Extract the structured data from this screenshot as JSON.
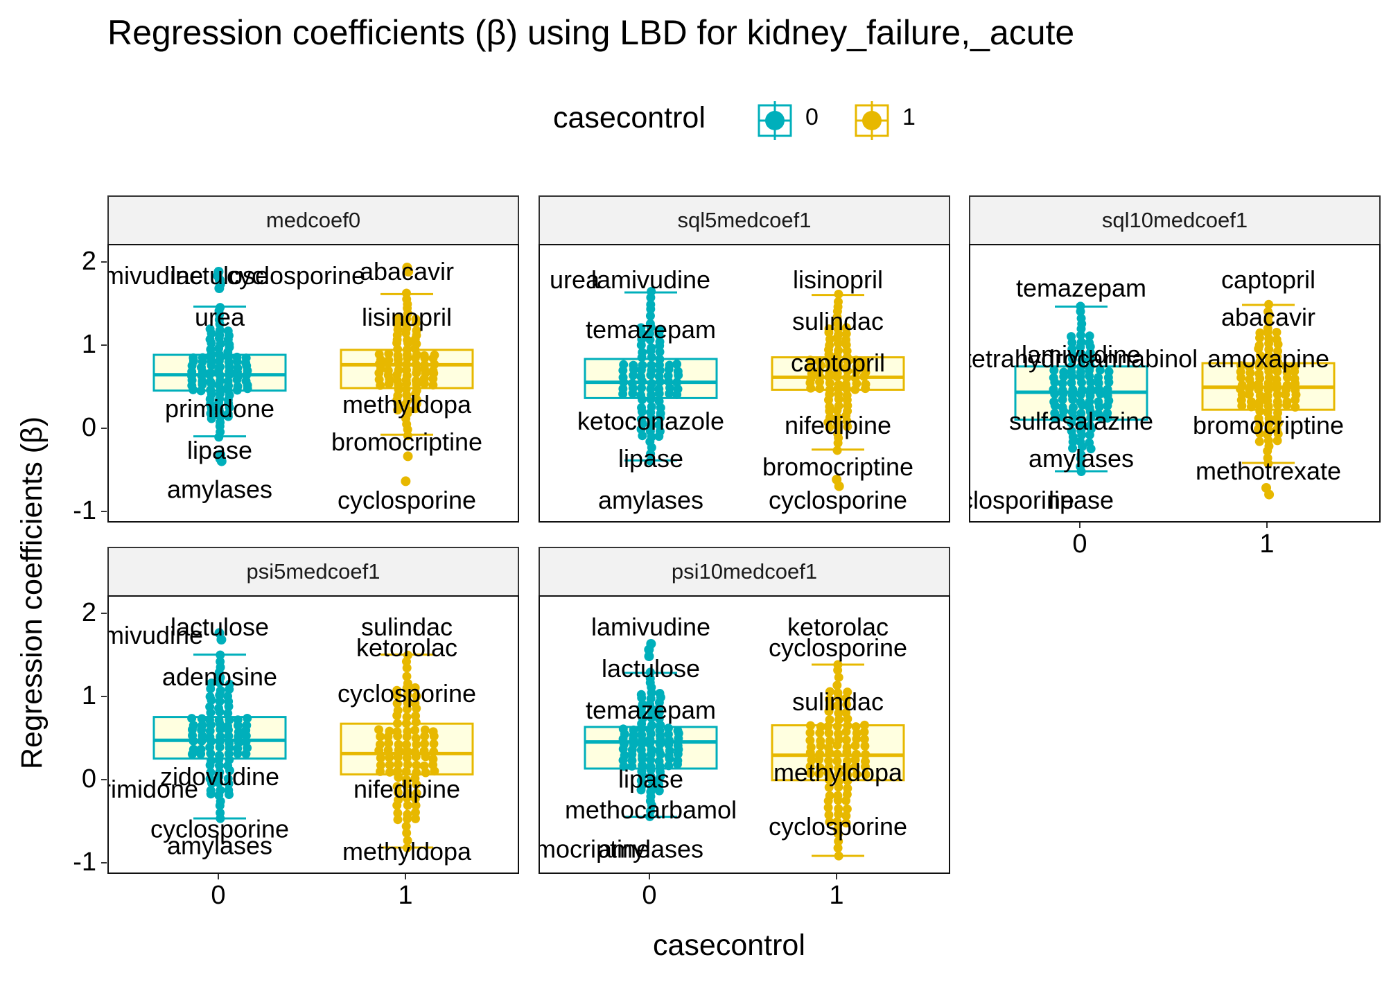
{
  "title": "Regression coefficients (β) using LBD for kidney_failure,_acute",
  "legend": {
    "title": "casecontrol",
    "items": [
      {
        "label": "0",
        "color": "#00AFBB"
      },
      {
        "label": "1",
        "color": "#E7B800"
      }
    ]
  },
  "colors": {
    "group0": "#00AFBB",
    "group1": "#E7B800",
    "box_fill": "#FFFFE0"
  },
  "axes": {
    "ylabel": "Regression coefficients (β)",
    "xlabel": "casecontrol"
  },
  "chart_data": [
    {
      "type": "box",
      "panel": "medcoef0",
      "categories": [
        "0",
        "1"
      ],
      "ylim": [
        -1,
        2
      ],
      "yticks": [
        "-1",
        "0",
        "1",
        "2"
      ],
      "boxes": [
        {
          "group": "0",
          "whisker_low": -0.08,
          "q1": 0.47,
          "median": 0.66,
          "q3": 0.9,
          "whisker_high": 1.48,
          "outliers": [
            1.7,
            1.75,
            1.8,
            1.85,
            1.9,
            -0.3,
            -0.35,
            -0.38
          ]
        },
        {
          "group": "1",
          "whisker_low": -0.06,
          "q1": 0.5,
          "median": 0.78,
          "q3": 0.96,
          "whisker_high": 1.63,
          "outliers": [
            1.9,
            1.95,
            -0.32,
            -0.62
          ]
        }
      ],
      "labels": [
        {
          "text": "lactulose",
          "group": "0",
          "value": 1.85
        },
        {
          "text": "lamivudine",
          "group": "0",
          "value": 1.85
        },
        {
          "text": "cyclosporine",
          "group": "0",
          "value": 1.85
        },
        {
          "text": "abacavir",
          "group": "1",
          "value": 1.9
        },
        {
          "text": "urea",
          "group": "0",
          "value": 1.35
        },
        {
          "text": "lisinopril",
          "group": "1",
          "value": 1.35
        },
        {
          "text": "primidone",
          "group": "0",
          "value": 0.25
        },
        {
          "text": "methyldopa",
          "group": "1",
          "value": 0.3
        },
        {
          "text": "lipase",
          "group": "0",
          "value": -0.25
        },
        {
          "text": "bromocriptine",
          "group": "1",
          "value": -0.15
        },
        {
          "text": "amylases",
          "group": "0",
          "value": -0.72
        },
        {
          "text": "cyclosporine",
          "group": "1",
          "value": -0.85
        }
      ]
    },
    {
      "type": "box",
      "panel": "sql5medcoef1",
      "categories": [
        "0",
        "1"
      ],
      "ylim": [
        -1,
        2
      ],
      "yticks": [
        "-1",
        "0",
        "1",
        "2"
      ],
      "boxes": [
        {
          "group": "0",
          "whisker_low": -0.37,
          "q1": 0.38,
          "median": 0.57,
          "q3": 0.85,
          "whisker_high": 1.65,
          "outliers": []
        },
        {
          "group": "1",
          "whisker_low": -0.24,
          "q1": 0.48,
          "median": 0.63,
          "q3": 0.87,
          "whisker_high": 1.62,
          "outliers": [
            -0.6,
            -0.68
          ]
        }
      ],
      "labels": [
        {
          "text": "lamivudine",
          "group": "0",
          "value": 1.8
        },
        {
          "text": "urea",
          "group": "0",
          "value": 1.8
        },
        {
          "text": "lisinopril",
          "group": "1",
          "value": 1.8
        },
        {
          "text": "temazepam",
          "group": "0",
          "value": 1.2
        },
        {
          "text": "sulindac",
          "group": "1",
          "value": 1.3
        },
        {
          "text": "captopril",
          "group": "1",
          "value": 0.8
        },
        {
          "text": "ketoconazole",
          "group": "0",
          "value": 0.1
        },
        {
          "text": "nifedipine",
          "group": "1",
          "value": 0.05
        },
        {
          "text": "lipase",
          "group": "0",
          "value": -0.35
        },
        {
          "text": "bromocriptine",
          "group": "1",
          "value": -0.45
        },
        {
          "text": "amylases",
          "group": "0",
          "value": -0.85
        },
        {
          "text": "cyclosporine",
          "group": "1",
          "value": -0.85
        }
      ]
    },
    {
      "type": "box",
      "panel": "sql10medcoef1",
      "categories": [
        "0",
        "1"
      ],
      "ylim": [
        -1,
        2
      ],
      "yticks": [
        "-1",
        "0",
        "1",
        "2"
      ],
      "boxes": [
        {
          "group": "0",
          "whisker_low": -0.5,
          "q1": 0.12,
          "median": 0.45,
          "q3": 0.76,
          "whisker_high": 1.48,
          "outliers": []
        },
        {
          "group": "1",
          "whisker_low": -0.4,
          "q1": 0.24,
          "median": 0.51,
          "q3": 0.8,
          "whisker_high": 1.5,
          "outliers": [
            -0.7,
            -0.78
          ]
        }
      ],
      "labels": [
        {
          "text": "temazepam",
          "group": "0",
          "value": 1.7
        },
        {
          "text": "captopril",
          "group": "1",
          "value": 1.8
        },
        {
          "text": "abacavir",
          "group": "1",
          "value": 1.35
        },
        {
          "text": "lamivudine",
          "group": "0",
          "value": 0.9
        },
        {
          "text": "tetrahydrocannabinol",
          "group": "0",
          "value": 0.85
        },
        {
          "text": "amoxapine",
          "group": "1",
          "value": 0.85
        },
        {
          "text": "sulfasalazine",
          "group": "0",
          "value": 0.1
        },
        {
          "text": "bromocriptine",
          "group": "1",
          "value": 0.05
        },
        {
          "text": "amylases",
          "group": "0",
          "value": -0.35
        },
        {
          "text": "methotrexate",
          "group": "1",
          "value": -0.5
        },
        {
          "text": "lipase",
          "group": "0",
          "value": -0.85
        },
        {
          "text": "cyclosporine",
          "group": "0",
          "value": -0.85
        }
      ]
    },
    {
      "type": "box",
      "panel": "psi5medcoef1",
      "categories": [
        "0",
        "1"
      ],
      "ylim": [
        -1,
        2
      ],
      "yticks": [
        "-1",
        "0",
        "1",
        "2"
      ],
      "boxes": [
        {
          "group": "0",
          "whisker_low": -0.45,
          "q1": 0.27,
          "median": 0.49,
          "q3": 0.77,
          "whisker_high": 1.52,
          "outliers": [
            1.7,
            1.78
          ]
        },
        {
          "group": "1",
          "whisker_low": -0.8,
          "q1": 0.08,
          "median": 0.33,
          "q3": 0.69,
          "whisker_high": 1.52,
          "outliers": []
        }
      ],
      "labels": [
        {
          "text": "lactulose",
          "group": "0",
          "value": 1.85
        },
        {
          "text": "lamivudine",
          "group": "0",
          "value": 1.75
        },
        {
          "text": "sulindac",
          "group": "1",
          "value": 1.85
        },
        {
          "text": "ketorolac",
          "group": "1",
          "value": 1.6
        },
        {
          "text": "adenosine",
          "group": "0",
          "value": 1.25
        },
        {
          "text": "cyclosporine",
          "group": "1",
          "value": 1.05
        },
        {
          "text": "zidovudine",
          "group": "0",
          "value": 0.05
        },
        {
          "text": "primidone",
          "group": "0",
          "value": -0.1
        },
        {
          "text": "nifedipine",
          "group": "1",
          "value": -0.1
        },
        {
          "text": "cyclosporine",
          "group": "0",
          "value": -0.58
        },
        {
          "text": "amylases",
          "group": "0",
          "value": -0.78
        },
        {
          "text": "methyldopa",
          "group": "1",
          "value": -0.85
        }
      ]
    },
    {
      "type": "box",
      "panel": "psi10medcoef1",
      "categories": [
        "0",
        "1"
      ],
      "ylim": [
        -1,
        2
      ],
      "yticks": [
        "-1",
        "0",
        "1",
        "2"
      ],
      "boxes": [
        {
          "group": "0",
          "whisker_low": -0.43,
          "q1": 0.15,
          "median": 0.47,
          "q3": 0.65,
          "whisker_high": 1.3,
          "outliers": [
            1.5,
            1.58,
            1.65
          ]
        },
        {
          "group": "1",
          "whisker_low": -0.9,
          "q1": 0.01,
          "median": 0.31,
          "q3": 0.67,
          "whisker_high": 1.4,
          "outliers": []
        }
      ],
      "labels": [
        {
          "text": "lamivudine",
          "group": "0",
          "value": 1.85
        },
        {
          "text": "ketorolac",
          "group": "1",
          "value": 1.85
        },
        {
          "text": "cyclosporine",
          "group": "1",
          "value": 1.6
        },
        {
          "text": "lactulose",
          "group": "0",
          "value": 1.35
        },
        {
          "text": "temazepam",
          "group": "0",
          "value": 0.85
        },
        {
          "text": "sulindac",
          "group": "1",
          "value": 0.95
        },
        {
          "text": "methyldopa",
          "group": "1",
          "value": 0.1
        },
        {
          "text": "lipase",
          "group": "0",
          "value": 0.02
        },
        {
          "text": "methocarbamol",
          "group": "0",
          "value": -0.35
        },
        {
          "text": "cyclosporine",
          "group": "1",
          "value": -0.55
        },
        {
          "text": "amylases",
          "group": "0",
          "value": -0.82
        },
        {
          "text": "bromocriptine",
          "group": "0",
          "value": -0.82
        }
      ]
    }
  ]
}
